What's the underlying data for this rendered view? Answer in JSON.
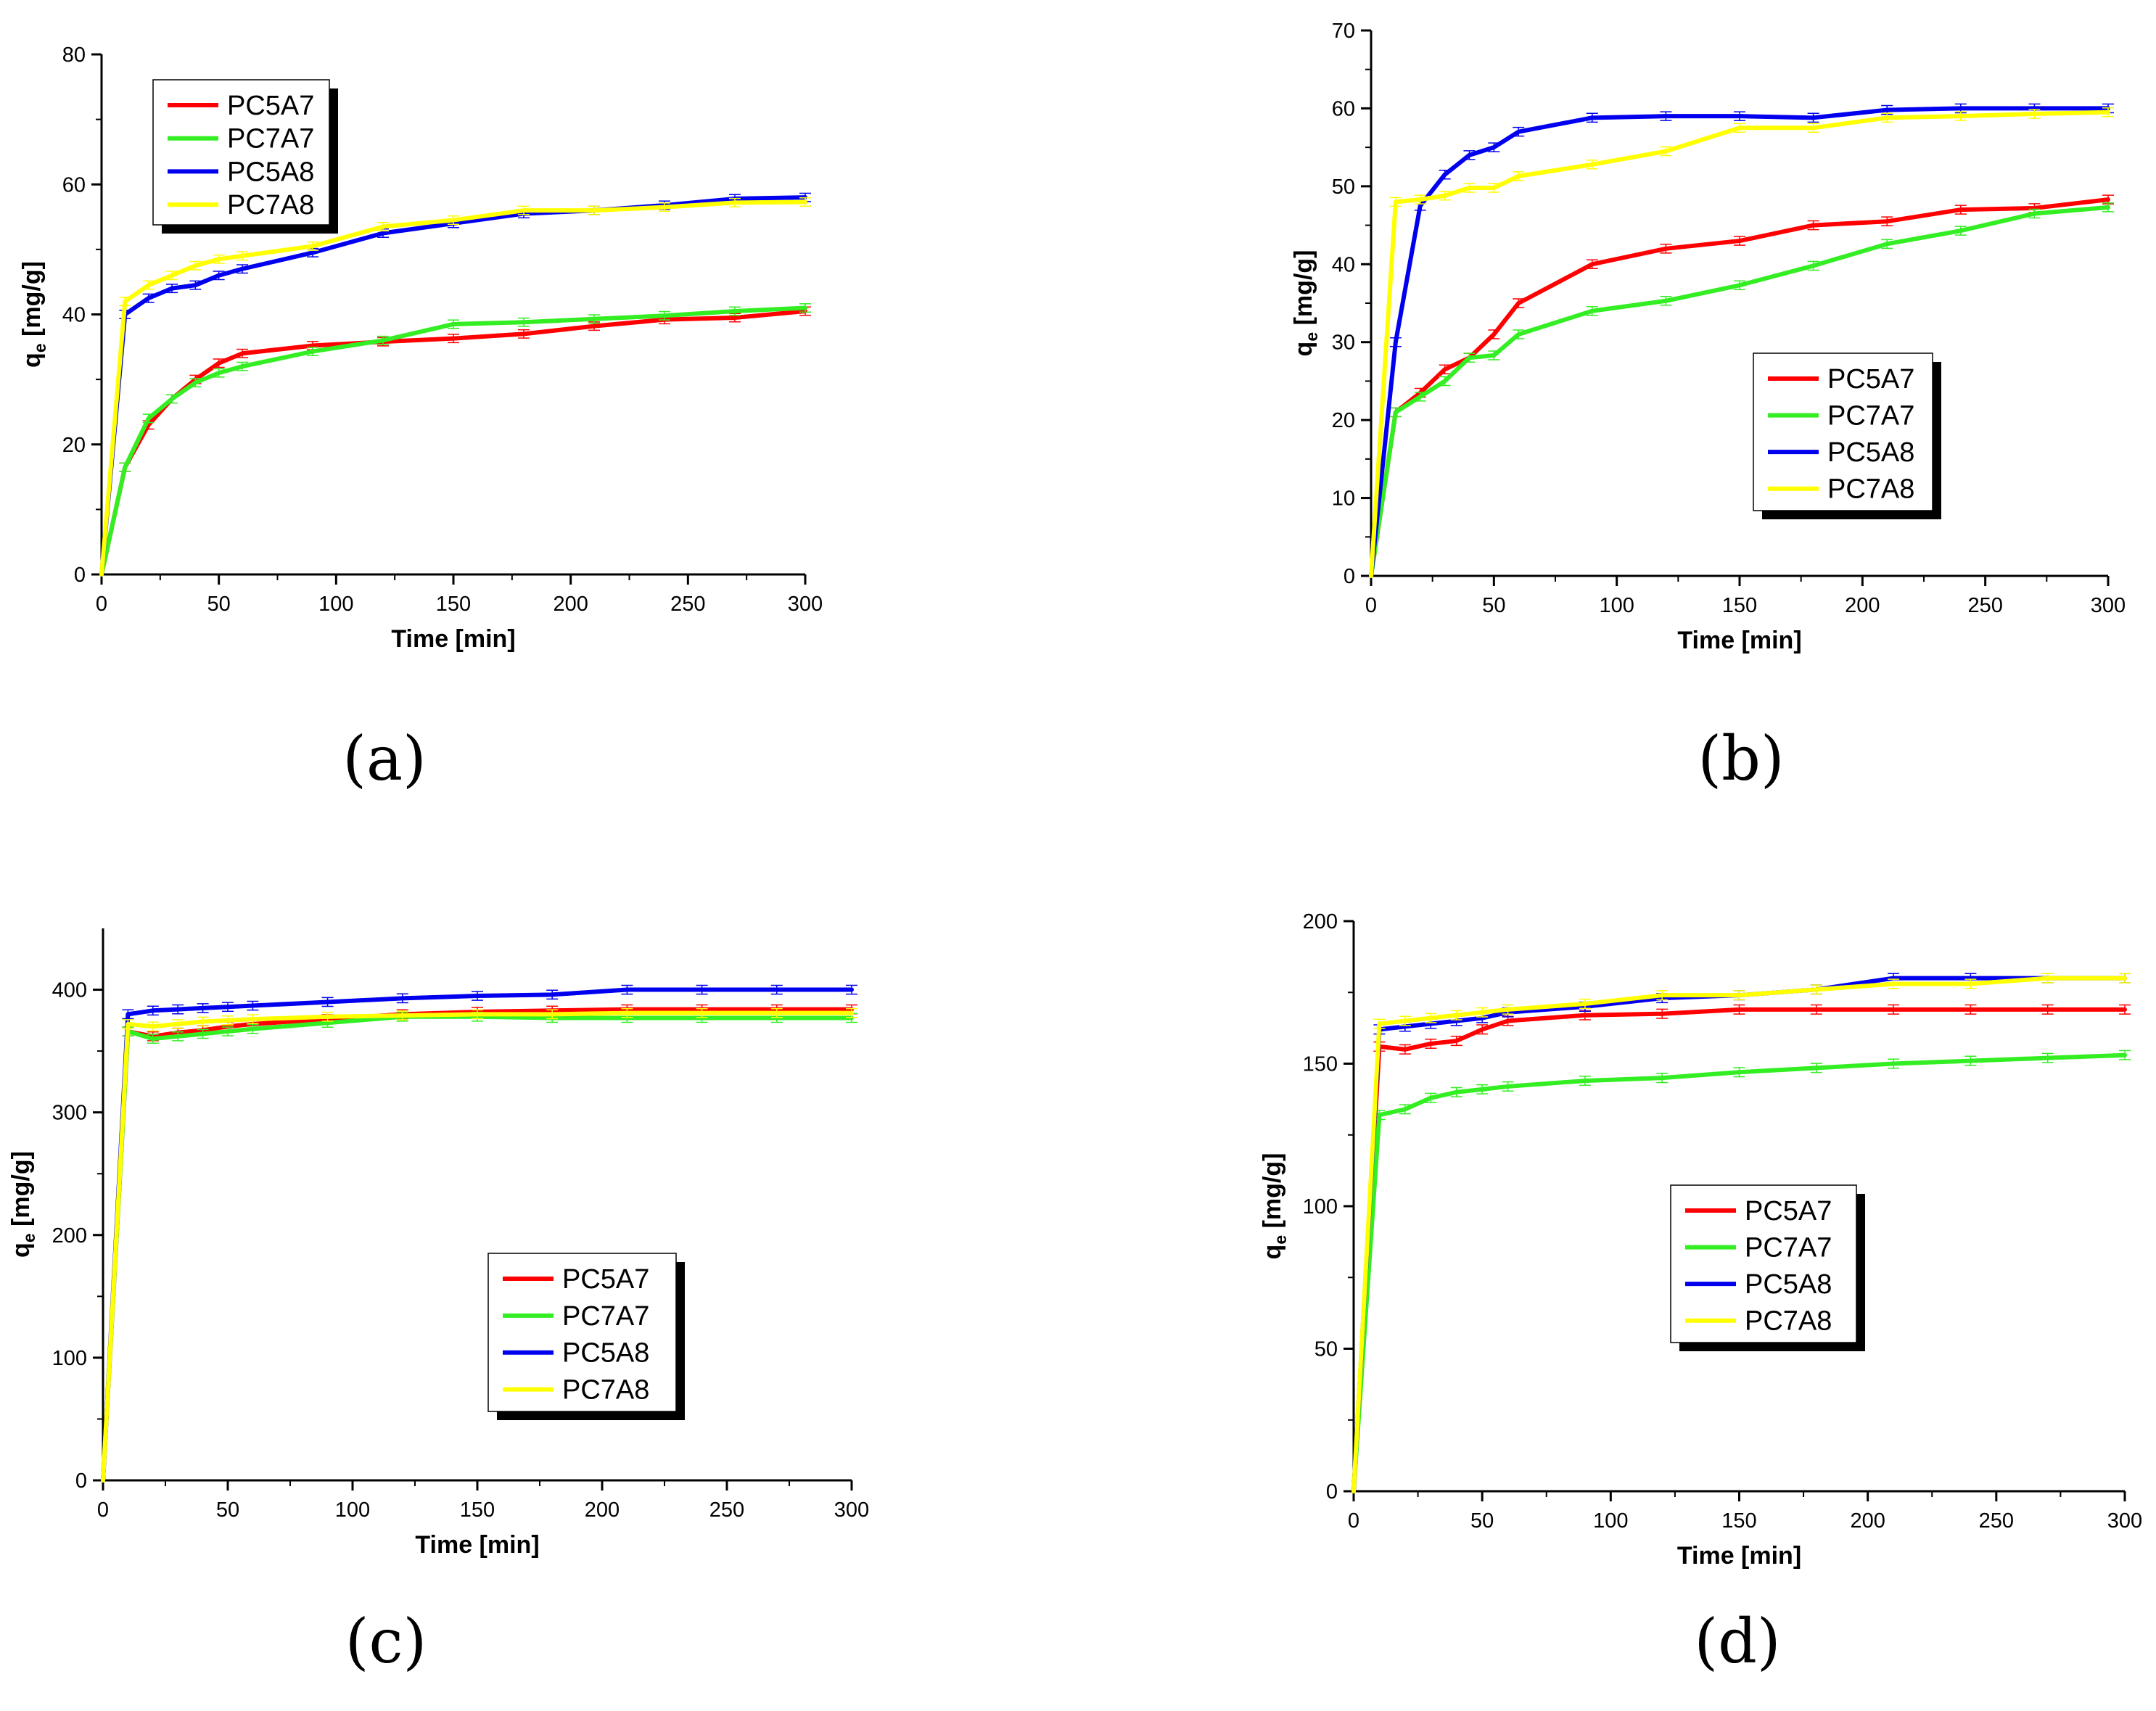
{
  "colors": {
    "PC5A7": "#ff0000",
    "PC7A7": "#33ee22",
    "PC5A8": "#0000ee",
    "PC7A8": "#ffff00"
  },
  "chart_data": [
    {
      "type": "line",
      "panel_label": "(a)",
      "xlabel": "Time [min]",
      "ylabel_main": "q",
      "ylabel_sub": "e",
      "ylabel_unit": " [mg/g]",
      "xlim": [
        0,
        300
      ],
      "ylim": [
        0,
        80
      ],
      "xticks": [
        0,
        50,
        100,
        150,
        200,
        250,
        300
      ],
      "yticks": [
        0,
        20,
        40,
        60,
        80
      ],
      "legend_position": "top-left",
      "x": [
        0,
        10,
        20,
        30,
        40,
        50,
        60,
        90,
        120,
        150,
        180,
        210,
        240,
        270,
        300
      ],
      "series": [
        {
          "name": "PC5A7",
          "values": [
            0,
            16.5,
            23,
            27,
            30,
            32.5,
            34,
            35.2,
            35.8,
            36.3,
            37,
            38.2,
            39.2,
            39.5,
            40.5
          ]
        },
        {
          "name": "PC7A7",
          "values": [
            0,
            16.5,
            24,
            27,
            29.5,
            31,
            32,
            34.3,
            36,
            38.5,
            38.8,
            39.3,
            39.8,
            40.5,
            41
          ]
        },
        {
          "name": "PC5A8",
          "values": [
            0,
            40,
            42.5,
            44,
            44.5,
            46,
            47,
            49.5,
            52.5,
            54,
            55.5,
            56,
            56.8,
            57.8,
            58
          ]
        },
        {
          "name": "PC7A8",
          "values": [
            0,
            42,
            44.5,
            46,
            47.5,
            48.5,
            49,
            50.5,
            53.5,
            54.5,
            56,
            56,
            56.5,
            57.2,
            57.3
          ]
        }
      ]
    },
    {
      "type": "line",
      "panel_label": "(b)",
      "xlabel": "Time [min]",
      "ylabel_main": "q",
      "ylabel_sub": "e",
      "ylabel_unit": " [mg/g]",
      "xlim": [
        0,
        300
      ],
      "ylim": [
        0,
        70
      ],
      "xticks": [
        0,
        50,
        100,
        150,
        200,
        250,
        300
      ],
      "yticks": [
        0,
        10,
        20,
        30,
        40,
        50,
        60,
        70
      ],
      "legend_position": "center-right",
      "x": [
        0,
        10,
        20,
        30,
        40,
        50,
        60,
        90,
        120,
        150,
        180,
        210,
        240,
        270,
        300
      ],
      "series": [
        {
          "name": "PC5A7",
          "values": [
            0,
            21,
            23.5,
            26.5,
            28,
            31,
            35,
            40,
            42,
            43,
            45,
            45.5,
            47,
            47.2,
            48.3
          ]
        },
        {
          "name": "PC7A7",
          "values": [
            0,
            21,
            23,
            25,
            28,
            28.3,
            31,
            34,
            35.3,
            37.3,
            39.8,
            42.6,
            44.3,
            46.5,
            47.3
          ]
        },
        {
          "name": "PC5A8",
          "values": [
            0,
            30,
            47.5,
            51.5,
            54,
            55,
            57,
            58.8,
            59,
            59,
            58.8,
            59.8,
            60,
            60,
            60
          ]
        },
        {
          "name": "PC7A8",
          "values": [
            0,
            48,
            48.3,
            48.8,
            49.8,
            49.8,
            51.3,
            52.8,
            54.5,
            57.5,
            57.5,
            58.8,
            59,
            59.3,
            59.5
          ]
        }
      ]
    },
    {
      "type": "line",
      "panel_label": "(c)",
      "xlabel": "Time [min]",
      "ylabel_main": "q",
      "ylabel_sub": "e",
      "ylabel_unit": " [mg/g]",
      "xlim": [
        0,
        300
      ],
      "ylim": [
        0,
        450
      ],
      "xticks": [
        0,
        50,
        100,
        150,
        200,
        250,
        300
      ],
      "yticks": [
        0,
        100,
        200,
        300,
        400
      ],
      "legend_position": "bottom-center",
      "x": [
        0,
        10,
        20,
        30,
        40,
        50,
        60,
        90,
        120,
        150,
        180,
        210,
        240,
        270,
        300
      ],
      "series": [
        {
          "name": "PC5A7",
          "values": [
            0,
            366,
            362,
            365,
            367,
            370,
            372,
            376,
            380,
            382,
            383,
            384,
            384,
            384,
            384
          ]
        },
        {
          "name": "PC7A7",
          "values": [
            0,
            366,
            360,
            362,
            364,
            366,
            368,
            373,
            378,
            378,
            377,
            377,
            377,
            377,
            377
          ]
        },
        {
          "name": "PC5A8",
          "values": [
            0,
            380,
            383,
            384,
            385,
            386,
            387,
            390,
            393,
            395,
            396,
            400,
            400,
            400,
            400
          ]
        },
        {
          "name": "PC7A8",
          "values": [
            0,
            372,
            370,
            372,
            374,
            375,
            376,
            378,
            379,
            380,
            380,
            381,
            381,
            381,
            381
          ]
        }
      ]
    },
    {
      "type": "line",
      "panel_label": "(d)",
      "xlabel": "Time [min]",
      "ylabel_main": "q",
      "ylabel_sub": "e",
      "ylabel_unit": " [mg/g]",
      "xlim": [
        0,
        300
      ],
      "ylim": [
        0,
        200
      ],
      "xticks": [
        0,
        50,
        100,
        150,
        200,
        250,
        300
      ],
      "yticks": [
        0,
        50,
        100,
        150,
        200
      ],
      "legend_position": "center",
      "x": [
        0,
        10,
        20,
        30,
        40,
        50,
        60,
        90,
        120,
        150,
        180,
        210,
        240,
        270,
        300
      ],
      "series": [
        {
          "name": "PC5A7",
          "values": [
            0,
            156,
            155,
            157,
            158,
            162,
            165,
            167,
            167.5,
            169,
            169,
            169,
            169,
            169,
            169
          ]
        },
        {
          "name": "PC7A7",
          "values": [
            0,
            132,
            134,
            138,
            140,
            141,
            142,
            144,
            145,
            147,
            148.5,
            150,
            151,
            152,
            153
          ]
        },
        {
          "name": "PC5A8",
          "values": [
            0,
            162,
            163,
            164,
            165,
            166,
            168,
            170,
            173,
            174,
            176,
            180,
            180,
            180,
            180
          ]
        },
        {
          "name": "PC7A8",
          "values": [
            0,
            164,
            165,
            166,
            167,
            168,
            169,
            171,
            174,
            174,
            176,
            178,
            178,
            180,
            180
          ]
        }
      ]
    }
  ]
}
